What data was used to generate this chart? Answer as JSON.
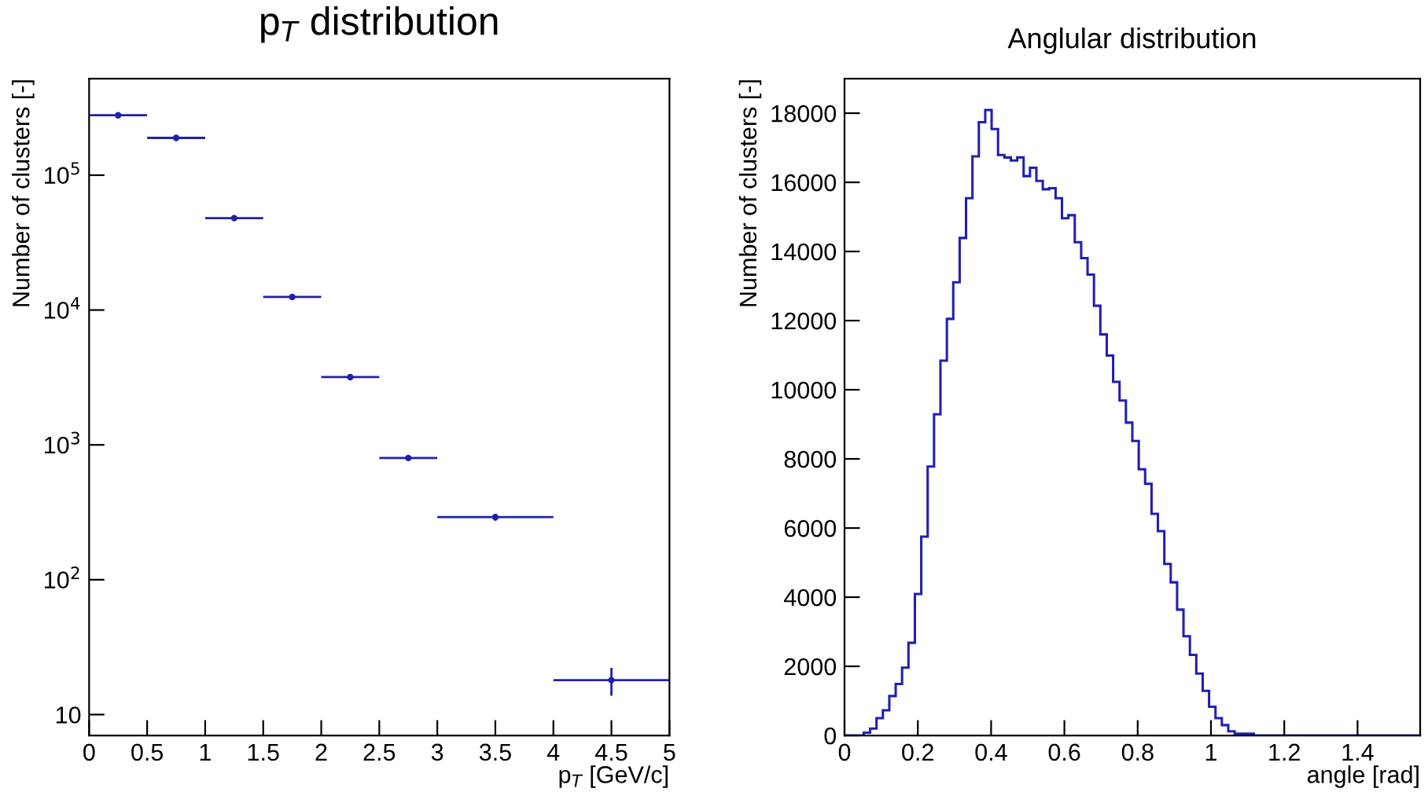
{
  "chart_data": [
    {
      "type": "scatter",
      "title": "p$_{T}$ distribution",
      "xlabel": "p$_{T}$ [GeV/c]",
      "ylabel": "Number of clusters [-]",
      "x": [
        0.25,
        0.75,
        1.25,
        1.75,
        2.25,
        2.75,
        3.5,
        4.5
      ],
      "series": [
        {
          "color": "#2020b0",
          "values": [
            278000,
            189000,
            48000,
            12500,
            3180,
            800,
            291,
            18
          ],
          "xerrors": [
            0.25,
            0.25,
            0.25,
            0.25,
            0.25,
            0.25,
            0.5,
            0.5
          ],
          "errors": [
            null,
            null,
            null,
            null,
            null,
            28,
            17,
            4.2
          ]
        }
      ],
      "log": "y",
      "xlim": [
        0,
        5
      ],
      "xticks": [
        0,
        0.5,
        1,
        1.5,
        2,
        2.5,
        3,
        3.5,
        4,
        4.5,
        5
      ],
      "ylim": [
        7,
        520000
      ],
      "yticks": [
        10,
        {
          "value": 100,
          "label": "10$^{2}$"
        },
        {
          "value": 1000,
          "label": "10$^{3}$"
        },
        {
          "value": 10000,
          "label": "10$^{4}$"
        },
        {
          "value": 100000,
          "label": "10$^{5}$"
        }
      ],
      "grid": false,
      "legend": false
    },
    {
      "type": "histogram",
      "title": "Anglular distribution",
      "xlabel": "angle [rad]",
      "ylabel": "Number of clusters [-]",
      "color": "#2020b0",
      "bins": [
        0,
        0.0175,
        0.0349,
        0.0524,
        0.0698,
        0.0873,
        0.1047,
        0.1222,
        0.1396,
        0.1571,
        0.1745,
        0.192,
        0.2094,
        0.2269,
        0.2443,
        0.2618,
        0.2793,
        0.2967,
        0.3142,
        0.3316,
        0.3491,
        0.3665,
        0.384,
        0.4014,
        0.4189,
        0.4363,
        0.4538,
        0.4712,
        0.4887,
        0.5061,
        0.5236,
        0.5411,
        0.5585,
        0.576,
        0.5934,
        0.6109,
        0.6283,
        0.6458,
        0.6632,
        0.6807,
        0.6981,
        0.7156,
        0.733,
        0.7505,
        0.7679,
        0.7854,
        0.8029,
        0.8203,
        0.8378,
        0.8552,
        0.8727,
        0.8901,
        0.9076,
        0.925,
        0.9425,
        0.9599,
        0.9774,
        0.9948,
        1.0123,
        1.0297,
        1.0472,
        1.0647,
        1.0821,
        1.0996,
        1.117,
        1.1345,
        1.1519,
        1.1694,
        1.1868,
        1.2043,
        1.2217,
        1.2392,
        1.2566,
        1.2741,
        1.2915,
        1.309,
        1.3265,
        1.3439,
        1.3614,
        1.3788,
        1.3963,
        1.4137,
        1.4312,
        1.4486,
        1.4661,
        1.4835,
        1.501,
        1.5184,
        1.5359,
        1.5533,
        1.5708
      ],
      "values": [
        0,
        0,
        0,
        80,
        200,
        500,
        730,
        1140,
        1490,
        1960,
        2680,
        4090,
        5750,
        7780,
        9290,
        10840,
        12050,
        13110,
        14390,
        15540,
        16750,
        17740,
        18090,
        17540,
        16790,
        16720,
        16630,
        16720,
        16180,
        16420,
        16040,
        15800,
        15830,
        15540,
        14960,
        15050,
        14270,
        13810,
        13330,
        12430,
        11600,
        10990,
        10230,
        9690,
        9050,
        8520,
        7700,
        7280,
        6410,
        5910,
        4960,
        4430,
        3640,
        2870,
        2330,
        1790,
        1290,
        830,
        500,
        300,
        120,
        50,
        50,
        50,
        0,
        0,
        0,
        0,
        0,
        0,
        0,
        0,
        0,
        0,
        0,
        0,
        0,
        0,
        0,
        0,
        0,
        0,
        0,
        0,
        0,
        0,
        0,
        0,
        0,
        0
      ],
      "xlim": [
        0,
        1.5708
      ],
      "xticks": [
        0,
        0.2,
        0.4,
        0.6,
        0.8,
        1,
        1.2,
        1.4
      ],
      "ylim": [
        0,
        19000
      ],
      "yticks": [
        0,
        2000,
        4000,
        6000,
        8000,
        10000,
        12000,
        14000,
        16000,
        18000
      ],
      "grid": false,
      "legend": false
    }
  ]
}
